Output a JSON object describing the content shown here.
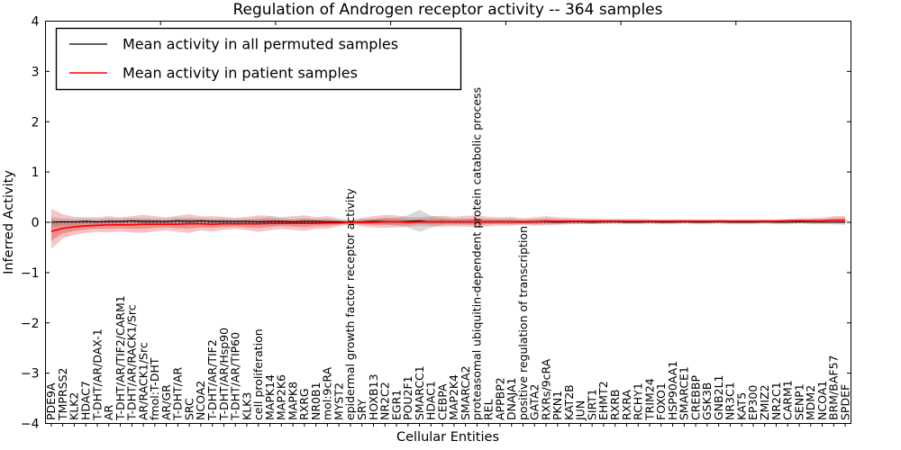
{
  "title": "Regulation of Androgen receptor activity -- 364 samples",
  "axes": {
    "ylabel": "Inferred Activity",
    "xlabel": "Cellular Entities",
    "ylim": [
      -4,
      4
    ],
    "ytick_labels": [
      "4",
      "3",
      "2",
      "1",
      "0",
      "−1",
      "−2",
      "−3",
      "−4"
    ],
    "ytick_values": [
      4,
      3,
      2,
      1,
      0,
      -1,
      -2,
      -3,
      -4
    ]
  },
  "legend": {
    "items": [
      {
        "label": "Mean activity in all permuted samples",
        "color": "#000000"
      },
      {
        "label": "Mean activity in patient samples",
        "color": "#ff0000"
      }
    ]
  },
  "colors": {
    "permuted_line": "#000000",
    "patient_line": "#ff0000",
    "patient_band": "rgba(222,45,45,0.28)",
    "patient_band_inner": "rgba(222,45,45,0.34)",
    "permuted_band": "rgba(128,128,128,0.30)",
    "zero_line": "#000000",
    "axis": "#000000"
  },
  "chart_data": {
    "type": "line",
    "title": "Regulation of Androgen receptor activity -- 364 samples",
    "xlabel": "Cellular Entities",
    "ylabel": "Inferred Activity",
    "ylim": [
      -4,
      4
    ],
    "grid": false,
    "legend_position": "upper left",
    "zero_line_dotted": true,
    "categories": [
      "PDE9A",
      "TMPRSS2",
      "KLK2",
      "HDAC7",
      "T-DHT/AR/DAX-1",
      "AR",
      "T-DHT/AR/TIF2/CARM1",
      "T-DHT/AR/RACK1/Src",
      "AR/RACK1/Src",
      "fmol:T-DHT",
      "AR/GR",
      "T-DHT/AR",
      "SRC",
      "NCOA2",
      "T-DHT/AR/TIF2",
      "T-DHT/AR/Hsp90",
      "T-DHT/AR/TIP60",
      "KLK3",
      "cell proliferation",
      "MAPK14",
      "MAP2K6",
      "MAPK8",
      "RXRG",
      "NR0B1",
      "mol:9cRA",
      "MYST2",
      "epidermal growth factor receptor activity",
      "SRY",
      "HOXB13",
      "NR2C2",
      "EGR1",
      "POU2F1",
      "SMARCC1",
      "HDAC1",
      "CEBPA",
      "MAP2K4",
      "SMARCA2",
      "proteasomal ubiquitin-dependent protein catabolic process",
      "REL",
      "APPBP2",
      "DNAJA1",
      "positive regulation of transcription",
      "GATA2",
      "RXRs/9cRA",
      "PKN1",
      "KAT2B",
      "JUN",
      "SIRT1",
      "EHMT2",
      "RXRB",
      "RXRA",
      "RCHY1",
      "TRIM24",
      "FOXO1",
      "HSP90AA1",
      "SMARCE1",
      "CREBBP",
      "GSK3B",
      "GNB2L1",
      "NR3C1",
      "KAT5",
      "EP300",
      "ZMIZ2",
      "NR2C1",
      "CARM1",
      "SENP1",
      "MDM2",
      "NCOA1",
      "BRM/BAF57",
      "SPDEF"
    ],
    "series": [
      {
        "name": "Mean activity in all permuted samples",
        "color": "#000000",
        "values": [
          0.0,
          0.01,
          0.01,
          0.02,
          0.01,
          0.02,
          0.02,
          0.03,
          0.02,
          0.02,
          0.02,
          0.03,
          0.02,
          0.03,
          0.02,
          0.02,
          0.02,
          0.02,
          0.01,
          0.02,
          0.02,
          0.01,
          0.02,
          0.02,
          0.01,
          0.01,
          0.0,
          0.01,
          0.02,
          0.02,
          0.01,
          0.02,
          0.03,
          0.01,
          0.02,
          0.01,
          0.01,
          0.01,
          0.01,
          0.01,
          0.01,
          0.0,
          0.01,
          0.01,
          0.0,
          0.01,
          0.01,
          0.0,
          0.01,
          0.01,
          0.0,
          0.0,
          0.01,
          0.0,
          0.0,
          0.01,
          0.0,
          0.0,
          0.01,
          0.0,
          0.0,
          0.0,
          0.01,
          0.0,
          0.0,
          0.01,
          0.0,
          0.0,
          0.0,
          0.0
        ],
        "band_upper": [
          0.1,
          0.08,
          0.07,
          0.07,
          0.06,
          0.08,
          0.07,
          0.09,
          0.08,
          0.07,
          0.07,
          0.09,
          0.08,
          0.08,
          0.07,
          0.07,
          0.06,
          0.07,
          0.08,
          0.1,
          0.08,
          0.06,
          0.08,
          0.07,
          0.06,
          0.05,
          0.04,
          0.06,
          0.07,
          0.08,
          0.09,
          0.14,
          0.25,
          0.13,
          0.09,
          0.07,
          0.07,
          0.07,
          0.06,
          0.06,
          0.06,
          0.04,
          0.06,
          0.06,
          0.04,
          0.05,
          0.05,
          0.04,
          0.05,
          0.05,
          0.04,
          0.04,
          0.05,
          0.04,
          0.04,
          0.05,
          0.04,
          0.04,
          0.05,
          0.04,
          0.04,
          0.04,
          0.05,
          0.04,
          0.04,
          0.05,
          0.04,
          0.04,
          0.04,
          0.05
        ],
        "band_lower": [
          -0.1,
          -0.06,
          -0.05,
          -0.03,
          -0.04,
          -0.04,
          -0.03,
          -0.03,
          -0.04,
          -0.03,
          -0.03,
          -0.03,
          -0.04,
          -0.02,
          -0.03,
          -0.03,
          -0.02,
          -0.03,
          -0.06,
          -0.06,
          -0.04,
          -0.04,
          -0.04,
          -0.03,
          -0.04,
          -0.03,
          -0.04,
          -0.04,
          -0.03,
          -0.04,
          -0.07,
          -0.1,
          -0.19,
          -0.11,
          -0.05,
          -0.05,
          -0.05,
          -0.05,
          -0.04,
          -0.04,
          -0.04,
          -0.04,
          -0.04,
          -0.04,
          -0.04,
          -0.03,
          -0.03,
          -0.04,
          -0.03,
          -0.03,
          -0.04,
          -0.04,
          -0.03,
          -0.04,
          -0.04,
          -0.03,
          -0.04,
          -0.04,
          -0.03,
          -0.04,
          -0.04,
          -0.04,
          -0.03,
          -0.04,
          -0.04,
          -0.03,
          -0.04,
          -0.04,
          -0.04,
          -0.05
        ]
      },
      {
        "name": "Mean activity in patient samples",
        "color": "#ff0000",
        "values": [
          -0.18,
          -0.12,
          -0.09,
          -0.07,
          -0.06,
          -0.05,
          -0.05,
          -0.05,
          -0.04,
          -0.04,
          -0.04,
          -0.04,
          -0.03,
          -0.03,
          -0.04,
          -0.03,
          -0.03,
          -0.03,
          -0.03,
          -0.02,
          -0.02,
          -0.02,
          -0.02,
          -0.02,
          -0.01,
          -0.01,
          0.0,
          0.0,
          0.0,
          0.01,
          0.01,
          0.0,
          0.01,
          0.01,
          0.01,
          0.01,
          0.01,
          0.01,
          0.01,
          0.01,
          0.01,
          0.01,
          0.01,
          0.02,
          0.02,
          0.02,
          0.02,
          0.02,
          0.02,
          0.02,
          0.02,
          0.02,
          0.02,
          0.02,
          0.02,
          0.02,
          0.02,
          0.02,
          0.02,
          0.02,
          0.02,
          0.02,
          0.02,
          0.02,
          0.03,
          0.03,
          0.03,
          0.03,
          0.04,
          0.04
        ],
        "band_upper": [
          0.27,
          0.16,
          0.11,
          0.1,
          0.1,
          0.12,
          0.1,
          0.12,
          0.15,
          0.12,
          0.1,
          0.13,
          0.16,
          0.12,
          0.12,
          0.11,
          0.09,
          0.11,
          0.14,
          0.13,
          0.1,
          0.12,
          0.14,
          0.1,
          0.12,
          0.07,
          0.04,
          0.09,
          0.12,
          0.15,
          0.14,
          0.1,
          0.1,
          0.12,
          0.13,
          0.11,
          0.13,
          0.14,
          0.11,
          0.1,
          0.11,
          0.08,
          0.1,
          0.12,
          0.1,
          0.09,
          0.08,
          0.08,
          0.07,
          0.07,
          0.07,
          0.07,
          0.06,
          0.06,
          0.06,
          0.06,
          0.06,
          0.06,
          0.06,
          0.06,
          0.06,
          0.06,
          0.06,
          0.06,
          0.07,
          0.08,
          0.08,
          0.09,
          0.12,
          0.13
        ],
        "band_lower": [
          -0.53,
          -0.32,
          -0.25,
          -0.21,
          -0.19,
          -0.2,
          -0.18,
          -0.2,
          -0.21,
          -0.18,
          -0.16,
          -0.19,
          -0.21,
          -0.16,
          -0.18,
          -0.15,
          -0.13,
          -0.16,
          -0.19,
          -0.16,
          -0.13,
          -0.15,
          -0.17,
          -0.13,
          -0.13,
          -0.08,
          -0.04,
          -0.08,
          -0.1,
          -0.11,
          -0.1,
          -0.09,
          -0.07,
          -0.08,
          -0.09,
          -0.08,
          -0.09,
          -0.1,
          -0.08,
          -0.07,
          -0.07,
          -0.05,
          -0.07,
          -0.06,
          -0.05,
          -0.04,
          -0.03,
          -0.03,
          -0.03,
          -0.02,
          -0.02,
          -0.02,
          -0.02,
          -0.02,
          -0.01,
          -0.01,
          -0.01,
          -0.01,
          -0.01,
          -0.01,
          -0.01,
          -0.01,
          -0.01,
          -0.01,
          0.0,
          0.0,
          0.0,
          -0.01,
          -0.01,
          -0.02
        ]
      }
    ]
  }
}
